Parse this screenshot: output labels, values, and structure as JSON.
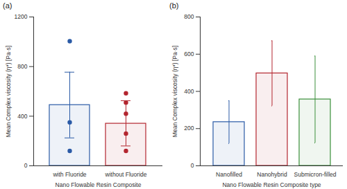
{
  "chart_data": [
    {
      "type": "bar",
      "title": "(a)",
      "xlabel": "Nano Flowable Resin Composite",
      "ylabel": "Mean Complex viscosity (η*) [Pa·s]",
      "categories": [
        "with Fluoride",
        "without Fluoride"
      ],
      "values": [
        490,
        340
      ],
      "error_bars": [
        [
          225,
          755
        ],
        [
          160,
          525
        ]
      ],
      "points": [
        [
          1005,
          350,
          120
        ],
        [
          585,
          510,
          420,
          260,
          120
        ]
      ],
      "colors": [
        "#2a5aa6",
        "#b3252f"
      ],
      "ylim": [
        0,
        1200
      ],
      "yticks": [
        0,
        400,
        800,
        1200
      ],
      "grid": false
    },
    {
      "type": "bar",
      "title": "(b)",
      "xlabel": "Nano Flowable Resin Composite type",
      "ylabel": "Mean Complex viscosity (η*) [Pa·s]",
      "categories": [
        "Nanofilled",
        "Nanohybrid",
        "Submicron-filled"
      ],
      "values": [
        235,
        497,
        357
      ],
      "error_bars": [
        [
          120,
          350
        ],
        [
          322,
          672
        ],
        [
          123,
          590
        ]
      ],
      "colors": [
        "#2a5aa6",
        "#b3252f",
        "#3a8f3a"
      ],
      "ylim": [
        0,
        800
      ],
      "yticks": [
        0,
        200,
        400,
        600,
        800
      ],
      "grid": false
    }
  ]
}
